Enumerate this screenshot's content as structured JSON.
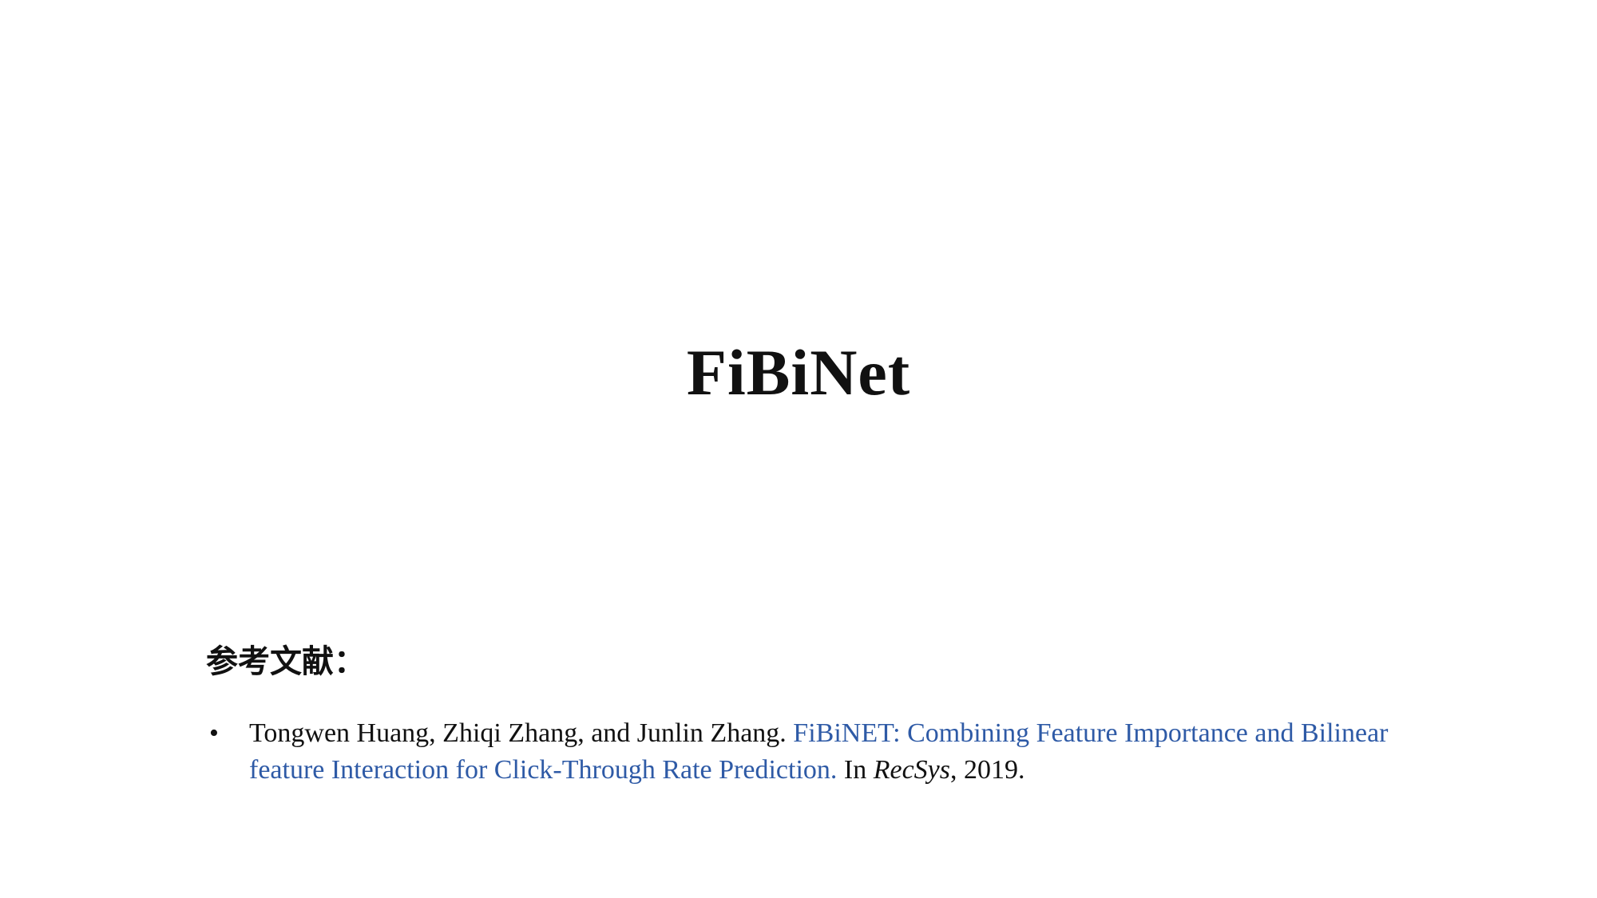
{
  "slide": {
    "title": "FiBiNet",
    "references_heading": "参考文献：",
    "references": [
      {
        "bullet": "•",
        "authors": "Tongwen Huang, Zhiqi Zhang, and Junlin Zhang.",
        "paper_title": "FiBiNET: Combining Feature Importance and Bilinear feature Interaction for Click-Through Rate Prediction.",
        "venue_prefix": "In",
        "venue": "RecSys",
        "year_suffix": ", 2019."
      }
    ]
  },
  "colors": {
    "text": "#111111",
    "link": "#2e5aa6",
    "background": "#ffffff"
  }
}
